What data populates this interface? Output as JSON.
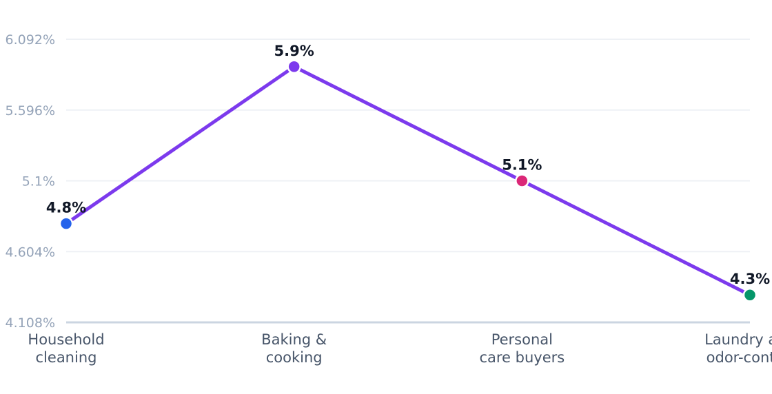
{
  "chart_data": {
    "type": "line",
    "categories": [
      [
        "Household",
        "cleaning"
      ],
      [
        "Baking &",
        "cooking"
      ],
      [
        "Personal",
        "care buyers"
      ],
      [
        "Laundry and",
        "odor-control"
      ]
    ],
    "series": [
      {
        "values": [
          4.8,
          5.9,
          5.1,
          4.3
        ],
        "labels": [
          "4.8%",
          "5.9%",
          "5.1%",
          "4.3%"
        ],
        "line_color": "#7c3aed",
        "point_colors": [
          "#2563eb",
          "#7c3aed",
          "#db2777",
          "#059669"
        ]
      }
    ],
    "y_ticks": [
      4.108,
      4.604,
      5.1,
      5.596,
      6.092
    ],
    "y_tick_labels": [
      "4.108%",
      "4.604%",
      "5.1%",
      "5.596%",
      "6.092%"
    ],
    "ylim": [
      4.108,
      6.092
    ],
    "grid": true,
    "title": "",
    "xlabel": "",
    "ylabel": ""
  },
  "colors": {
    "grid": "#eef1f5",
    "axis": "#cbd5e1"
  }
}
